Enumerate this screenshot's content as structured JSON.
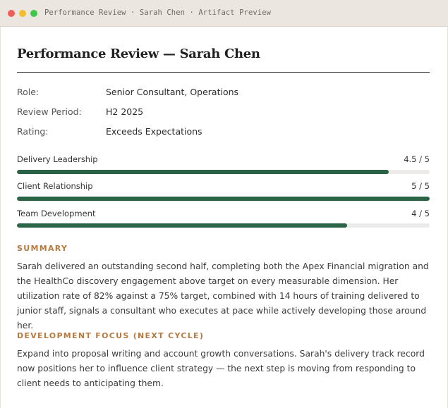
{
  "window": {
    "title": "Performance Review · Sarah Chen · Artifact Preview"
  },
  "document": {
    "title": "Performance Review — Sarah Chen",
    "meta": [
      {
        "label": "Role:",
        "value": "Senior Consultant, Operations"
      },
      {
        "label": "Review Period:",
        "value": "H2 2025"
      },
      {
        "label": "Rating:",
        "value": "Exceeds Expectations"
      }
    ],
    "scores": [
      {
        "label": "Delivery Leadership",
        "value_text": "4.5 / 5",
        "fraction": 0.9
      },
      {
        "label": "Client Relationship",
        "value_text": "5 / 5",
        "fraction": 1.0
      },
      {
        "label": "Team Development",
        "value_text": "4 / 5",
        "fraction": 0.8
      }
    ],
    "summary": {
      "heading": "SUMMARY",
      "text": "Sarah delivered an outstanding second half, completing both the Apex Financial migration and the HealthCo discovery engagement above target on every measurable dimension. Her utilization rate of 82% against a 75% target, combined with 14 hours of training delivered to junior staff, signals a consultant who executes at pace while actively developing those around her."
    },
    "development": {
      "heading": "DEVELOPMENT FOCUS (NEXT CYCLE)",
      "text": "Expand into proposal writing and account growth conversations. Sarah's delivery track record now positions her to influence client strategy — the next step is moving from responding to client needs to anticipating them."
    }
  },
  "colors": {
    "accent": "#2b6346",
    "heading_accent": "#b87a3f",
    "titlebar": "#ebe7e0"
  }
}
